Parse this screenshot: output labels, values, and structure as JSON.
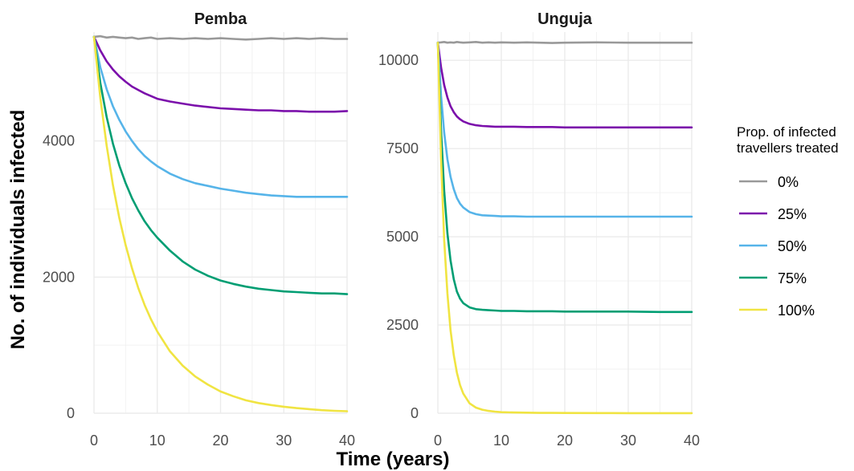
{
  "chart_data": {
    "type": "line",
    "xlabel": "Time (years)",
    "ylabel": "No. of individuals infected",
    "grid": true,
    "legend": {
      "title_lines": [
        "Prop. of infected",
        "travellers treated"
      ],
      "placement": "right"
    },
    "series_styles": [
      {
        "name": "0%",
        "color": "#999999"
      },
      {
        "name": "25%",
        "color": "#7b0fab"
      },
      {
        "name": "50%",
        "color": "#56b4e9"
      },
      {
        "name": "75%",
        "color": "#009e73"
      },
      {
        "name": "100%",
        "color": "#f0e442"
      }
    ],
    "panels": [
      {
        "title": "Pemba",
        "xlim": [
          0,
          40
        ],
        "ylim": [
          0,
          5600
        ],
        "x_ticks": [
          0,
          10,
          20,
          30,
          40
        ],
        "x_tick_labels": [
          "0",
          "10",
          "20",
          "30",
          "40"
        ],
        "y_ticks": [
          0,
          2000,
          4000
        ],
        "y_tick_labels": [
          "0",
          "2000",
          "4000"
        ],
        "x": [
          0,
          1,
          2,
          3,
          4,
          5,
          6,
          7,
          8,
          9,
          10,
          12,
          14,
          16,
          18,
          20,
          22,
          24,
          26,
          28,
          30,
          32,
          34,
          36,
          38,
          40
        ],
        "series": [
          {
            "name": "0%",
            "values": [
              5530,
              5540,
              5520,
              5530,
              5520,
              5510,
              5520,
              5500,
              5510,
              5520,
              5500,
              5510,
              5500,
              5510,
              5500,
              5510,
              5500,
              5490,
              5500,
              5510,
              5500,
              5510,
              5500,
              5510,
              5500,
              5500
            ]
          },
          {
            "name": "25%",
            "values": [
              5530,
              5330,
              5170,
              5050,
              4950,
              4870,
              4800,
              4750,
              4700,
              4660,
              4620,
              4580,
              4550,
              4520,
              4500,
              4480,
              4470,
              4460,
              4450,
              4450,
              4440,
              4440,
              4430,
              4430,
              4430,
              4440
            ]
          },
          {
            "name": "50%",
            "values": [
              5530,
              5080,
              4760,
              4510,
              4310,
              4140,
              4000,
              3880,
              3780,
              3700,
              3630,
              3520,
              3440,
              3380,
              3340,
              3300,
              3270,
              3240,
              3220,
              3200,
              3190,
              3180,
              3180,
              3180,
              3180,
              3180
            ]
          },
          {
            "name": "75%",
            "values": [
              5530,
              4850,
              4350,
              3960,
              3640,
              3380,
              3160,
              2980,
              2820,
              2690,
              2580,
              2390,
              2230,
              2110,
              2020,
              1950,
              1900,
              1860,
              1830,
              1810,
              1790,
              1780,
              1770,
              1760,
              1760,
              1750
            ]
          },
          {
            "name": "100%",
            "values": [
              5530,
              4630,
              3930,
              3350,
              2870,
              2470,
              2130,
              1840,
              1590,
              1380,
              1200,
              910,
              700,
              540,
              420,
              320,
              250,
              190,
              150,
              120,
              95,
              75,
              60,
              45,
              35,
              30
            ]
          }
        ]
      },
      {
        "title": "Unguja",
        "xlim": [
          0,
          40
        ],
        "ylim": [
          0,
          10800
        ],
        "x_ticks": [
          0,
          10,
          20,
          30,
          40
        ],
        "x_tick_labels": [
          "0",
          "10",
          "20",
          "30",
          "40"
        ],
        "y_ticks": [
          0,
          2500,
          5000,
          7500,
          10000
        ],
        "y_tick_labels": [
          "0",
          "2500",
          "5000",
          "7500",
          "10000"
        ],
        "x": [
          0,
          0.5,
          1,
          1.5,
          2,
          2.5,
          3,
          3.5,
          4,
          5,
          6,
          7,
          8,
          9,
          10,
          12,
          14,
          16,
          18,
          20,
          25,
          30,
          35,
          40
        ],
        "series": [
          {
            "name": "0%",
            "values": [
              10500,
              10510,
              10520,
              10500,
              10510,
              10500,
              10520,
              10510,
              10500,
              10510,
              10520,
              10500,
              10510,
              10500,
              10510,
              10500,
              10510,
              10500,
              10490,
              10500,
              10510,
              10500,
              10500,
              10500
            ]
          },
          {
            "name": "25%",
            "values": [
              10500,
              9800,
              9300,
              8950,
              8700,
              8530,
              8410,
              8330,
              8270,
              8200,
              8160,
              8140,
              8130,
              8120,
              8120,
              8120,
              8110,
              8110,
              8110,
              8100,
              8100,
              8100,
              8100,
              8100
            ]
          },
          {
            "name": "50%",
            "values": [
              10500,
              9000,
              7950,
              7200,
              6700,
              6350,
              6100,
              5940,
              5830,
              5700,
              5640,
              5610,
              5600,
              5590,
              5580,
              5580,
              5570,
              5570,
              5570,
              5570,
              5570,
              5570,
              5570,
              5570
            ]
          },
          {
            "name": "75%",
            "values": [
              10500,
              8000,
              6300,
              5100,
              4330,
              3800,
              3450,
              3250,
              3120,
              3000,
              2950,
              2930,
              2920,
              2910,
              2900,
              2900,
              2890,
              2890,
              2890,
              2880,
              2880,
              2880,
              2870,
              2870
            ]
          },
          {
            "name": "100%",
            "values": [
              10500,
              7200,
              4900,
              3400,
              2350,
              1650,
              1150,
              800,
              560,
              280,
              160,
              100,
              65,
              45,
              30,
              20,
              15,
              10,
              8,
              6,
              4,
              3,
              2,
              2
            ]
          }
        ]
      }
    ]
  }
}
